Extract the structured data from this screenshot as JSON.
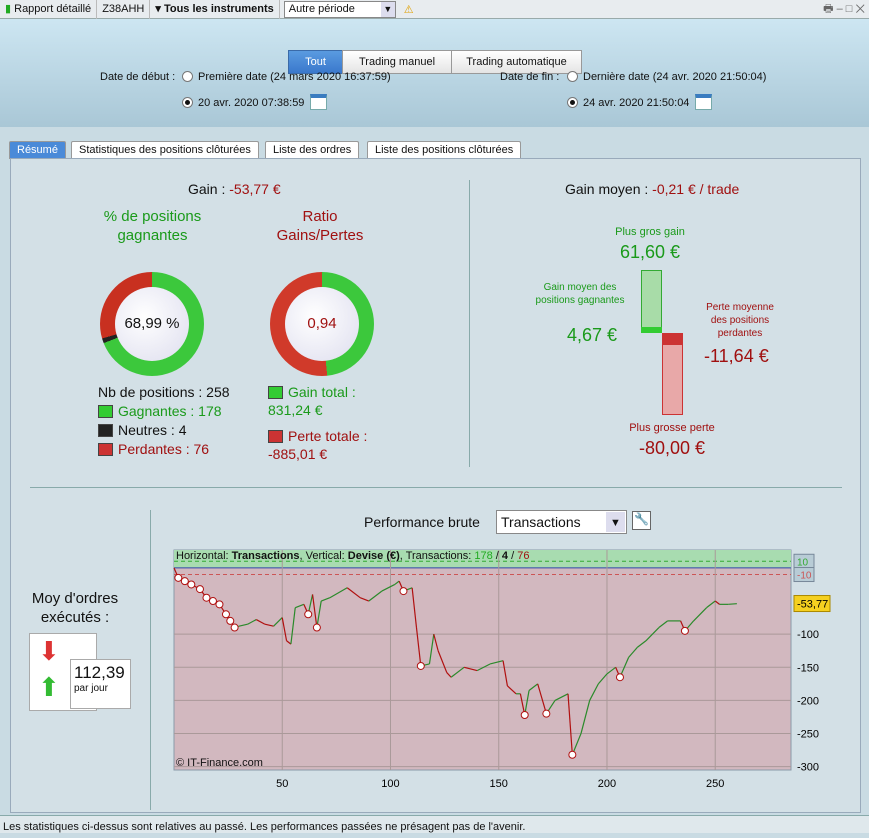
{
  "toolbar": {
    "report": "Rapport détaillé",
    "account": "Z38AHH",
    "instruments": "Tous les instruments",
    "period": "Autre période"
  },
  "filters": {
    "tabs": [
      "Tout",
      "Trading manuel",
      "Trading automatique"
    ],
    "active": "Tout",
    "start_label": "Date de début :",
    "start_first": "Première date (24 mars 2020 16:37:59)",
    "start_custom": "20 avr. 2020 07:38:59",
    "end_label": "Date de fin :",
    "end_last": "Dernière date (24 avr. 2020 21:50:04)",
    "end_custom": "24 avr. 2020 21:50:04"
  },
  "tabs": [
    "Résumé",
    "Statistiques des positions clôturées",
    "Liste des ordres",
    "Liste des positions clôturées"
  ],
  "summary": {
    "gain_label": "Gain :",
    "gain_value": "-53,77 €",
    "win_title": "% de positions gagnantes",
    "win_pct": "68,99 %",
    "win_fraction": 0.6899,
    "ratio_title": "Ratio Gains/Pertes",
    "ratio_value": "0,94",
    "nb_positions": "Nb de positions : 258",
    "winners": "Gagnantes : 178",
    "neutral": "Neutres : 4",
    "losers": "Perdantes : 76",
    "total_gain_label": "Gain total :",
    "total_gain": "831,24 €",
    "total_loss_label": "Perte totale :",
    "total_loss": "-885,01 €",
    "avg_gain_label": "Gain moyen :",
    "avg_gain": "-0,21 € / trade",
    "biggest_gain_label": "Plus gros gain",
    "biggest_gain": "61,60 €",
    "avg_win_label": "Gain moyen des positions gagnantes",
    "avg_win": "4,67 €",
    "avg_loss_label": "Perte moyenne des positions perdantes",
    "avg_loss": "-11,64 €",
    "biggest_loss_label": "Plus grosse perte",
    "biggest_loss": "-80,00 €",
    "orders_label": "Moy d'ordres exécutés :",
    "orders_value": "112,39",
    "orders_unit": "par jour"
  },
  "chart_header": {
    "title": "Performance brute",
    "select": "Transactions"
  },
  "chart_data": {
    "type": "line",
    "title": "Performance brute",
    "info_prefix": "Horizontal: ",
    "info_h": "Transactions",
    "info_mid": ", Vertical: ",
    "info_v": "Devise (€)",
    "info_tr": ", Transactions: ",
    "info_win": "178",
    "info_neutral": "4",
    "info_loss": "76",
    "watermark": "© IT-Finance.com",
    "xlim": [
      0,
      285
    ],
    "ylim": [
      -305,
      27
    ],
    "xticks": [
      50,
      100,
      150,
      200,
      250
    ],
    "yticks": [
      -100,
      -150,
      -200,
      -250,
      -300
    ],
    "band_labels": [
      "10",
      "-10"
    ],
    "last_value_label": "-53,77",
    "last_value": -53.77,
    "x": [
      0,
      2,
      5,
      8,
      12,
      15,
      18,
      21,
      24,
      26,
      28,
      30,
      34,
      38,
      42,
      46,
      50,
      52,
      54,
      56,
      60,
      62,
      64,
      66,
      68,
      72,
      80,
      86,
      90,
      96,
      102,
      104,
      106,
      110,
      112,
      114,
      118,
      120,
      122,
      126,
      128,
      134,
      140,
      146,
      152,
      154,
      158,
      160,
      162,
      164,
      168,
      172,
      176,
      182,
      184,
      188,
      192,
      196,
      200,
      204,
      206,
      210,
      214,
      218,
      224,
      228,
      234,
      236,
      240,
      246,
      250,
      252,
      256,
      260
    ],
    "y": [
      0,
      -15,
      -20,
      -25,
      -32,
      -45,
      -50,
      -55,
      -70,
      -80,
      -90,
      -88,
      -85,
      -78,
      -85,
      -88,
      -75,
      -110,
      -115,
      -60,
      -55,
      -70,
      -40,
      -90,
      -50,
      -45,
      -30,
      -45,
      -50,
      -35,
      -25,
      -20,
      -35,
      -30,
      -90,
      -148,
      -145,
      -100,
      -125,
      -158,
      -165,
      -150,
      -155,
      -145,
      -140,
      -178,
      -190,
      -190,
      -222,
      -185,
      -175,
      -220,
      -200,
      -190,
      -282,
      -250,
      -200,
      -175,
      -160,
      -150,
      -165,
      -135,
      -120,
      -110,
      -90,
      -80,
      -80,
      -95,
      -80,
      -60,
      -50,
      -55,
      -55,
      -54
    ],
    "colors": {
      "up": "#2a8a2a",
      "down": "#b01010",
      "plot_bg": "#d2b8bf",
      "band": "#a8dcb0"
    }
  },
  "footer": "Les statistiques ci-dessus sont relatives au passé. Les performances passées ne présagent pas de l'avenir."
}
